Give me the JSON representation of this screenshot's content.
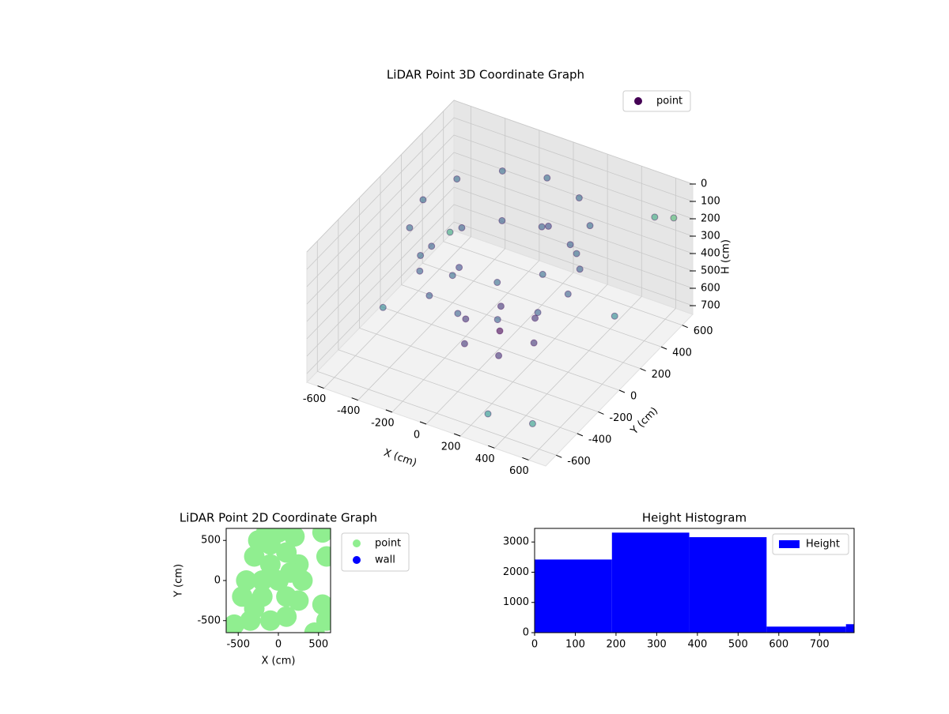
{
  "chart_data": [
    {
      "type": "scatter3d",
      "title": "LiDAR Point 3D Coordinate Graph",
      "x_label": "X (cm)",
      "y_label": "Y (cm)",
      "z_label": "H (cm)",
      "colormap": "viridis",
      "z_inverted": true,
      "legend": "upper right",
      "xlim": [
        -700,
        700
      ],
      "ylim": [
        -700,
        700
      ],
      "zlim": [
        0,
        750
      ],
      "xticks": [
        -600,
        -400,
        -200,
        0,
        200,
        400,
        600
      ],
      "yticks": [
        -600,
        -400,
        -200,
        0,
        200,
        400,
        600
      ],
      "zticks": [
        0,
        100,
        200,
        300,
        400,
        500,
        600,
        700
      ],
      "series": [
        {
          "name": "point",
          "color": "#440154",
          "x": [
            450,
            390,
            225,
            0,
            -225,
            -390,
            -450,
            -390,
            -225,
            0,
            225,
            390,
            400,
            346,
            200,
            0,
            -200,
            -346,
            -400,
            -346,
            -200,
            0,
            200,
            346,
            200,
            100,
            -100,
            -200,
            -100,
            100,
            600,
            650,
            -500,
            300,
            -600,
            500,
            0,
            -300,
            100,
            550
          ],
          "y": [
            0,
            225,
            390,
            450,
            390,
            225,
            0,
            -225,
            -390,
            -450,
            -390,
            -225,
            0,
            200,
            346,
            400,
            346,
            200,
            0,
            -200,
            -346,
            -400,
            -346,
            -200,
            0,
            173,
            173,
            0,
            -173,
            -173,
            500,
            600,
            -300,
            -600,
            500,
            -500,
            0,
            100,
            300,
            200
          ],
          "z": [
            50,
            50,
            50,
            50,
            50,
            50,
            50,
            50,
            50,
            50,
            50,
            50,
            300,
            300,
            300,
            300,
            300,
            300,
            300,
            300,
            300,
            300,
            300,
            300,
            650,
            650,
            650,
            650,
            650,
            650,
            100,
            150,
            500,
            650,
            600,
            700,
            650,
            450,
            200,
            500
          ]
        }
      ]
    },
    {
      "type": "scatter",
      "title": "LiDAR Point 2D Coordinate Graph",
      "x_label": "X (cm)",
      "y_label": "Y (cm)",
      "legend": "outside right",
      "xlim": [
        -650,
        650
      ],
      "ylim": [
        -650,
        650
      ],
      "xticks": [
        -500,
        0,
        500
      ],
      "yticks": [
        -500,
        0,
        500
      ],
      "series": [
        {
          "name": "point",
          "color": "#90ee90",
          "x": [
            -400,
            -300,
            -100,
            100,
            250,
            300,
            250,
            100,
            -100,
            -300,
            -450,
            -200,
            0,
            -100,
            100,
            -200,
            150,
            200,
            -150,
            550,
            600,
            550,
            600,
            -550,
            450,
            -350,
            0,
            -250
          ],
          "y": [
            0,
            300,
            450,
            350,
            200,
            0,
            -250,
            -450,
            -500,
            -350,
            -200,
            0,
            0,
            200,
            -200,
            -200,
            100,
            550,
            600,
            600,
            300,
            -300,
            -500,
            -550,
            -650,
            -500,
            600,
            500
          ]
        },
        {
          "name": "wall",
          "color": "#0000ff",
          "x": [],
          "y": []
        }
      ]
    },
    {
      "type": "histogram",
      "title": "Height Histogram",
      "legend": "upper right",
      "bins": [
        0,
        190,
        380,
        570,
        765,
        785
      ],
      "xlim": [
        0,
        785
      ],
      "ylim": [
        0,
        3450
      ],
      "xticks": [
        0,
        100,
        200,
        300,
        400,
        500,
        600,
        700
      ],
      "yticks": [
        0,
        1000,
        2000,
        3000
      ],
      "series": [
        {
          "name": "Height",
          "color": "#0000ff",
          "values": [
            2420,
            3310,
            3160,
            200,
            280
          ]
        }
      ]
    }
  ]
}
